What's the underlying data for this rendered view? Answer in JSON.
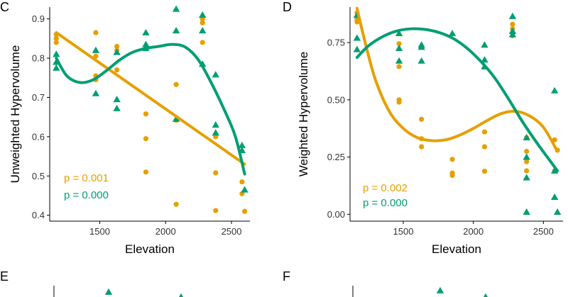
{
  "colors": {
    "orange": "#E69F00",
    "green": "#009E73",
    "axis": "#000000"
  },
  "chart_data": [
    {
      "type": "scatter",
      "panel": "C",
      "xlabel": "Elevation",
      "ylabel": "Unweighted Hypervolume",
      "xlim": [
        1120,
        2640
      ],
      "ylim": [
        0.385,
        0.93
      ],
      "xticks": [
        1500,
        2000,
        2500
      ],
      "xtick_labels": [
        "1500",
        "2000",
        "2500"
      ],
      "yticks": [
        0.4,
        0.5,
        0.6,
        0.7,
        0.8,
        0.9
      ],
      "ytick_labels": [
        "0.4",
        "0.5",
        "0.6",
        "0.7",
        "0.8",
        "0.9"
      ],
      "annotations": [
        {
          "text": "p = 0.001",
          "color": "orange"
        },
        {
          "text": "p = 0.000",
          "color": "green"
        }
      ],
      "series": [
        {
          "name": "orange",
          "color": "orange",
          "marker": "circle",
          "fit": "linear",
          "points": [
            [
              1170,
              0.86
            ],
            [
              1170,
              0.85
            ],
            [
              1170,
              0.84
            ],
            [
              1470,
              0.865
            ],
            [
              1470,
              0.805
            ],
            [
              1470,
              0.755
            ],
            [
              1470,
              0.745
            ],
            [
              1630,
              0.83
            ],
            [
              1630,
              0.82
            ],
            [
              1630,
              0.77
            ],
            [
              1850,
              0.658
            ],
            [
              1850,
              0.595
            ],
            [
              1850,
              0.51
            ],
            [
              2080,
              0.733
            ],
            [
              2080,
              0.642
            ],
            [
              2080,
              0.428
            ],
            [
              2280,
              0.9
            ],
            [
              2280,
              0.89
            ],
            [
              2280,
              0.84
            ],
            [
              2380,
              0.6
            ],
            [
              2380,
              0.508
            ],
            [
              2380,
              0.412
            ],
            [
              2580,
              0.485
            ],
            [
              2580,
              0.455
            ],
            [
              2600,
              0.41
            ]
          ],
          "fit_curve": [
            [
              1170,
              0.865
            ],
            [
              2600,
              0.53
            ]
          ]
        },
        {
          "name": "green",
          "color": "green",
          "marker": "triangle",
          "fit": "cubic",
          "points": [
            [
              1170,
              0.81
            ],
            [
              1170,
              0.79
            ],
            [
              1170,
              0.775
            ],
            [
              1470,
              0.82
            ],
            [
              1470,
              0.71
            ],
            [
              1630,
              0.815
            ],
            [
              1630,
              0.695
            ],
            [
              1630,
              0.672
            ],
            [
              1850,
              0.865
            ],
            [
              1850,
              0.835
            ],
            [
              1850,
              0.825
            ],
            [
              2080,
              0.925
            ],
            [
              2080,
              0.87
            ],
            [
              2080,
              0.645
            ],
            [
              2280,
              0.91
            ],
            [
              2280,
              0.87
            ],
            [
              2280,
              0.785
            ],
            [
              2380,
              0.758
            ],
            [
              2380,
              0.63
            ],
            [
              2380,
              0.61
            ],
            [
              2580,
              0.578
            ],
            [
              2580,
              0.565
            ],
            [
              2600,
              0.465
            ]
          ],
          "fit_curve": [
            [
              1170,
              0.8
            ],
            [
              1250,
              0.755
            ],
            [
              1350,
              0.738
            ],
            [
              1450,
              0.745
            ],
            [
              1550,
              0.768
            ],
            [
              1650,
              0.795
            ],
            [
              1750,
              0.815
            ],
            [
              1850,
              0.825
            ],
            [
              1950,
              0.83
            ],
            [
              2050,
              0.835
            ],
            [
              2150,
              0.828
            ],
            [
              2250,
              0.795
            ],
            [
              2350,
              0.735
            ],
            [
              2450,
              0.665
            ],
            [
              2530,
              0.6
            ],
            [
              2600,
              0.505
            ]
          ]
        }
      ]
    },
    {
      "type": "scatter",
      "panel": "D",
      "xlabel": "Elevation",
      "ylabel": "Weighted Hypervolume",
      "xlim": [
        1120,
        2640
      ],
      "ylim": [
        -0.03,
        0.905
      ],
      "xticks": [
        1500,
        2000,
        2500
      ],
      "xtick_labels": [
        "1500",
        "2000",
        "2500"
      ],
      "yticks": [
        0,
        0.25,
        0.5,
        0.75
      ],
      "ytick_labels": [
        "0.00",
        "0.25",
        "0.50",
        "0.75"
      ],
      "annotations": [
        {
          "text": "p = 0.002",
          "color": "orange"
        },
        {
          "text": "p = 0.000",
          "color": "green"
        }
      ],
      "series": [
        {
          "name": "orange",
          "color": "orange",
          "marker": "circle",
          "fit": "cubic",
          "points": [
            [
              1170,
              0.88
            ],
            [
              1170,
              0.85
            ],
            [
              1170,
              0.84
            ],
            [
              1470,
              0.745
            ],
            [
              1470,
              0.645
            ],
            [
              1470,
              0.5
            ],
            [
              1470,
              0.49
            ],
            [
              1630,
              0.415
            ],
            [
              1630,
              0.33
            ],
            [
              1630,
              0.295
            ],
            [
              1850,
              0.24
            ],
            [
              1850,
              0.18
            ],
            [
              1850,
              0.17
            ],
            [
              2080,
              0.36
            ],
            [
              2080,
              0.295
            ],
            [
              2080,
              0.188
            ],
            [
              2280,
              0.83
            ],
            [
              2280,
              0.81
            ],
            [
              2280,
              0.78
            ],
            [
              2380,
              0.335
            ],
            [
              2380,
              0.275
            ],
            [
              2380,
              0.23
            ],
            [
              2380,
              0.19
            ],
            [
              2580,
              0.325
            ],
            [
              2600,
              0.28
            ],
            [
              2580,
              0.19
            ]
          ],
          "fit_curve": [
            [
              1170,
              0.9
            ],
            [
              1220,
              0.77
            ],
            [
              1300,
              0.59
            ],
            [
              1400,
              0.45
            ],
            [
              1500,
              0.375
            ],
            [
              1600,
              0.335
            ],
            [
              1700,
              0.322
            ],
            [
              1800,
              0.325
            ],
            [
              1900,
              0.345
            ],
            [
              2000,
              0.375
            ],
            [
              2100,
              0.41
            ],
            [
              2200,
              0.44
            ],
            [
              2300,
              0.45
            ],
            [
              2400,
              0.43
            ],
            [
              2500,
              0.38
            ],
            [
              2600,
              0.275
            ]
          ]
        },
        {
          "name": "green",
          "color": "green",
          "marker": "triangle",
          "fit": "cubic",
          "points": [
            [
              1170,
              0.87
            ],
            [
              1170,
              0.77
            ],
            [
              1170,
              0.72
            ],
            [
              1470,
              0.79
            ],
            [
              1470,
              0.725
            ],
            [
              1470,
              0.67
            ],
            [
              1630,
              0.74
            ],
            [
              1630,
              0.73
            ],
            [
              1630,
              0.67
            ],
            [
              1850,
              0.79
            ],
            [
              2080,
              0.74
            ],
            [
              2080,
              0.675
            ],
            [
              2080,
              0.645
            ],
            [
              2280,
              0.865
            ],
            [
              2280,
              0.8
            ],
            [
              2280,
              0.785
            ],
            [
              2380,
              0.335
            ],
            [
              2380,
              0.25
            ],
            [
              2380,
              0.16
            ],
            [
              2380,
              0.01
            ],
            [
              2580,
              0.54
            ],
            [
              2580,
              0.19
            ],
            [
              2580,
              0.075
            ],
            [
              2600,
              0.01
            ]
          ],
          "fit_curve": [
            [
              1170,
              0.685
            ],
            [
              1250,
              0.735
            ],
            [
              1350,
              0.775
            ],
            [
              1450,
              0.8
            ],
            [
              1550,
              0.81
            ],
            [
              1650,
              0.808
            ],
            [
              1750,
              0.795
            ],
            [
              1850,
              0.77
            ],
            [
              1950,
              0.728
            ],
            [
              2050,
              0.67
            ],
            [
              2150,
              0.598
            ],
            [
              2250,
              0.505
            ],
            [
              2350,
              0.405
            ],
            [
              2450,
              0.315
            ],
            [
              2530,
              0.248
            ],
            [
              2600,
              0.19
            ]
          ]
        }
      ]
    },
    {
      "type": "scatter",
      "panel": "E",
      "partial": true,
      "points_visible": [
        {
          "color": "green",
          "marker": "triangle"
        },
        {
          "color": "green",
          "marker": "triangle"
        }
      ]
    },
    {
      "type": "scatter",
      "panel": "F",
      "partial": true,
      "points_visible": [
        {
          "color": "green",
          "marker": "triangle"
        },
        {
          "color": "green",
          "marker": "triangle"
        }
      ]
    }
  ]
}
